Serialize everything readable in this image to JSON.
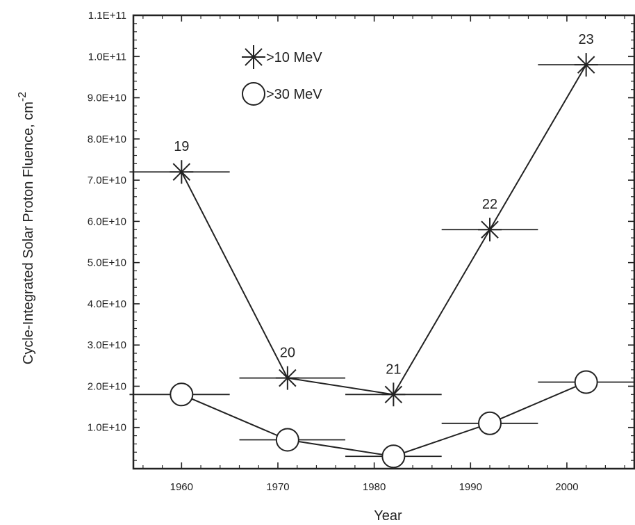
{
  "chart_data": {
    "type": "scatter",
    "xlabel": "Year",
    "ylabel": "Cycle-Integrated Solar Proton Fluence, cm",
    "ylabel_exponent": "-2",
    "xlim": [
      1955,
      2007
    ],
    "ylim": [
      0,
      110000000000
    ],
    "x_ticks": [
      1960,
      1970,
      1980,
      1990,
      2000
    ],
    "y_ticks": [
      {
        "value": 10000000000,
        "label": "1.0E+10"
      },
      {
        "value": 20000000000,
        "label": "2.0E+10"
      },
      {
        "value": 30000000000,
        "label": "3.0E+10"
      },
      {
        "value": 40000000000,
        "label": "4.0E+10"
      },
      {
        "value": 50000000000,
        "label": "5.0E+10"
      },
      {
        "value": 60000000000,
        "label": "6.0E+10"
      },
      {
        "value": 70000000000,
        "label": "7.0E+10"
      },
      {
        "value": 80000000000,
        "label": "8.0E+10"
      },
      {
        "value": 90000000000,
        "label": "9.0E+10"
      },
      {
        "value": 100000000000,
        "label": "1.0E+11"
      },
      {
        "value": 110000000000,
        "label": "1.1E+11"
      }
    ],
    "series": [
      {
        "name": ">10 MeV",
        "marker": "asterisk",
        "x": [
          1960,
          1971,
          1982,
          1992,
          2002
        ],
        "y": [
          72000000000,
          22000000000,
          18000000000,
          58000000000,
          98000000000
        ],
        "x_err": [
          [
            1954.6,
            1965
          ],
          [
            1966,
            1977
          ],
          [
            1977,
            1987
          ],
          [
            1987,
            1997
          ],
          [
            1997,
            2007
          ]
        ]
      },
      {
        "name": ">30 MeV",
        "marker": "circle",
        "x": [
          1960,
          1971,
          1982,
          1992,
          2002
        ],
        "y": [
          18000000000,
          7000000000,
          3000000000,
          11000000000,
          21000000000
        ],
        "x_err": [
          [
            1954.6,
            1965
          ],
          [
            1966,
            1977
          ],
          [
            1977,
            1987
          ],
          [
            1987,
            1997
          ],
          [
            1997,
            2007
          ]
        ]
      }
    ],
    "annotations": [
      {
        "text": "19",
        "x": 1960,
        "y": 72000000000
      },
      {
        "text": "20",
        "x": 1971,
        "y": 22000000000
      },
      {
        "text": "21",
        "x": 1982,
        "y": 18000000000
      },
      {
        "text": "22",
        "x": 1992,
        "y": 58000000000
      },
      {
        "text": "23",
        "x": 2002,
        "y": 98000000000
      }
    ],
    "grid": false,
    "legend_position": "top-left",
    "colors": {
      "line": "#222222",
      "background": "#ffffff"
    }
  }
}
